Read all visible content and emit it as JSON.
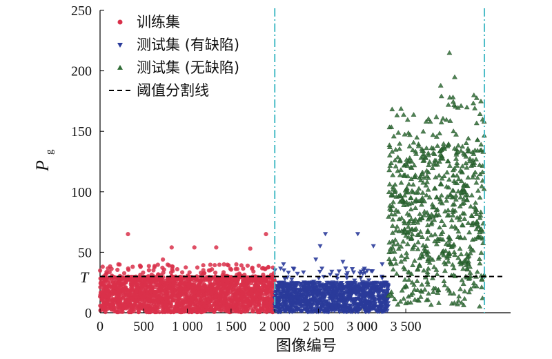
{
  "chart_data": {
    "type": "scatter",
    "title": "",
    "xlabel": "图像编号",
    "ylabel": "P",
    "ylabel_subscript": "g",
    "xlim": [
      0,
      4700
    ],
    "ylim": [
      0,
      250
    ],
    "x_ticks": [
      0,
      500,
      1000,
      1500,
      2000,
      2500,
      3000,
      3500
    ],
    "x_tick_labels": [
      "0",
      "500",
      "1 000",
      "1 500",
      "2 000",
      "2 500",
      "3 000",
      "3 500"
    ],
    "y_ticks": [
      0,
      50,
      100,
      150,
      200,
      250
    ],
    "y_tick_labels": [
      "0",
      "50",
      "100",
      "150",
      "200",
      "250"
    ],
    "grid": false,
    "legend_position": "top-left",
    "threshold": {
      "name": "阈值分割线",
      "value": 30,
      "label": "T",
      "color": "#000000"
    },
    "dividers": [
      {
        "x": 2000,
        "color": "#4dbdc8"
      },
      {
        "x": 4400,
        "color": "#4dbdc8"
      }
    ],
    "series": [
      {
        "name": "训练集",
        "marker": "circle",
        "color": "#d9304a",
        "x_range": [
          0,
          2000
        ],
        "y_range": [
          0,
          30
        ],
        "count": 2000,
        "notable_points": [
          {
            "x": 320,
            "y": 65
          },
          {
            "x": 820,
            "y": 54
          },
          {
            "x": 1080,
            "y": 54
          },
          {
            "x": 1330,
            "y": 54
          },
          {
            "x": 1720,
            "y": 53
          },
          {
            "x": 1900,
            "y": 65
          },
          {
            "x": 720,
            "y": 44
          },
          {
            "x": 210,
            "y": 40
          },
          {
            "x": 1560,
            "y": 40
          },
          {
            "x": 30,
            "y": 38
          }
        ]
      },
      {
        "name": "测试集 (有缺陷)",
        "marker": "triangle-down",
        "color": "#2a3b9a",
        "x_range": [
          2000,
          3300
        ],
        "y_range": [
          0,
          25
        ],
        "count": 1300,
        "notable_points": [
          {
            "x": 2580,
            "y": 65
          },
          {
            "x": 2950,
            "y": 65
          },
          {
            "x": 2520,
            "y": 55
          },
          {
            "x": 3130,
            "y": 55
          },
          {
            "x": 2470,
            "y": 44
          },
          {
            "x": 2780,
            "y": 42
          },
          {
            "x": 3230,
            "y": 40
          },
          {
            "x": 2100,
            "y": 40
          }
        ]
      },
      {
        "name": "测试集 (无缺陷)",
        "marker": "triangle-up",
        "color": "#2f6b35",
        "x_range": [
          3300,
          4400
        ],
        "y_range": [
          30,
          140
        ],
        "count": 700,
        "notable_points": [
          {
            "x": 4000,
            "y": 215
          },
          {
            "x": 4060,
            "y": 195
          },
          {
            "x": 3900,
            "y": 188
          },
          {
            "x": 4280,
            "y": 180
          },
          {
            "x": 4360,
            "y": 175
          },
          {
            "x": 4200,
            "y": 170
          },
          {
            "x": 3850,
            "y": 162
          },
          {
            "x": 4380,
            "y": 160
          },
          {
            "x": 3700,
            "y": 150
          },
          {
            "x": 3560,
            "y": 15
          },
          {
            "x": 3500,
            "y": 8
          }
        ]
      }
    ]
  }
}
